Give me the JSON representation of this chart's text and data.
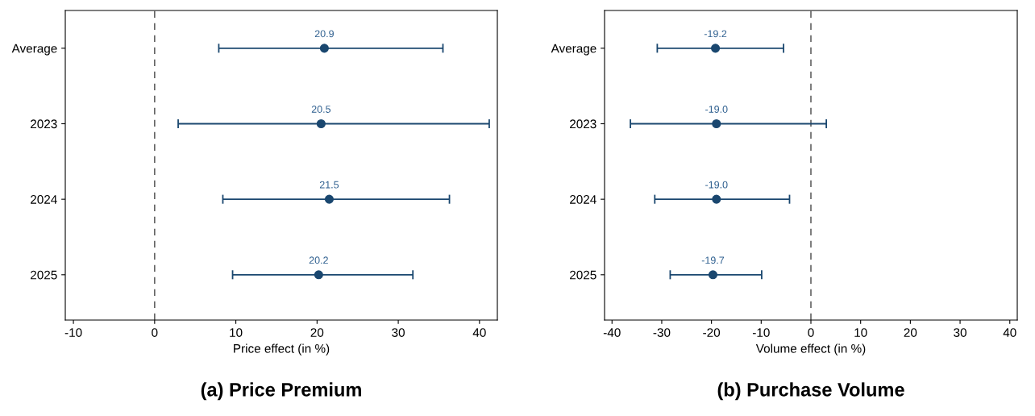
{
  "chart_data": [
    {
      "type": "scatter",
      "orientation": "horizontal",
      "title": "(a) Price Premium",
      "xlabel": "Price effect (in %)",
      "categories": [
        "Average",
        "2023",
        "2024",
        "2025"
      ],
      "series": [
        {
          "color": "#1a476f",
          "values": [
            20.9,
            20.5,
            21.5,
            20.2
          ],
          "value_labels": [
            "20.9",
            "20.5",
            "21.5",
            "20.2"
          ],
          "errors": [
            [
              7.9,
              35.5
            ],
            [
              2.9,
              41.2
            ],
            [
              8.4,
              36.3
            ],
            [
              9.6,
              31.8
            ]
          ]
        }
      ],
      "xlim": [
        -11,
        42.2
      ],
      "xticks": [
        -10,
        0,
        10,
        20,
        30,
        40
      ],
      "ref_lines": [
        {
          "axis": "x",
          "value": 0,
          "color": "#666666",
          "line_style": "dashed"
        }
      ],
      "marker": "circle",
      "grid": false
    },
    {
      "type": "scatter",
      "orientation": "horizontal",
      "title": "(b) Purchase Volume",
      "xlabel": "Volume effect (in %)",
      "categories": [
        "Average",
        "2023",
        "2024",
        "2025"
      ],
      "series": [
        {
          "color": "#1a476f",
          "values": [
            -19.2,
            -19.0,
            -19.0,
            -19.7
          ],
          "value_labels": [
            "-19.2",
            "-19.0",
            "-19.0",
            "-19.7"
          ],
          "errors": [
            [
              -30.9,
              -5.5
            ],
            [
              -36.3,
              3.1
            ],
            [
              -31.4,
              -4.3
            ],
            [
              -28.3,
              -9.9
            ]
          ]
        }
      ],
      "xlim": [
        -41.5,
        41.5
      ],
      "xticks": [
        -40,
        -30,
        -20,
        -10,
        0,
        10,
        20,
        30,
        40
      ],
      "ref_lines": [
        {
          "axis": "x",
          "value": 0,
          "color": "#666666",
          "line_style": "dashed"
        }
      ],
      "marker": "circle",
      "grid": false
    }
  ]
}
